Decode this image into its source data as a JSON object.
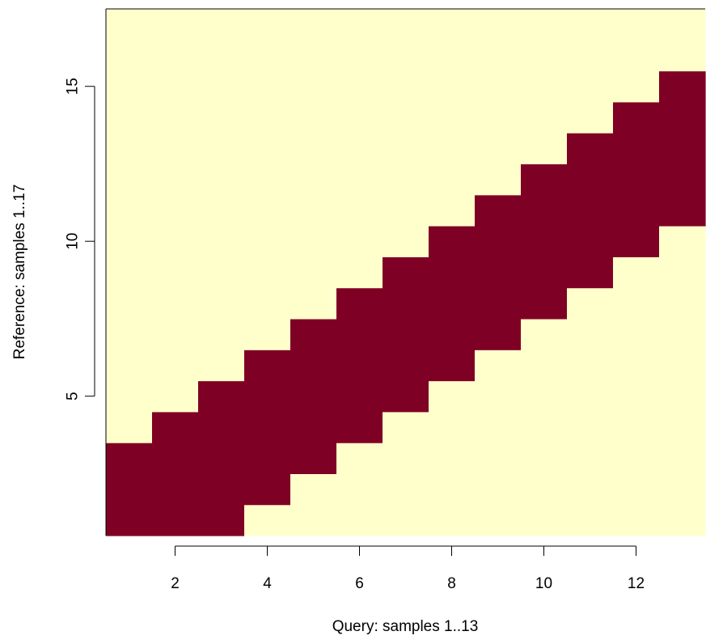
{
  "chart_data": {
    "type": "heatmap",
    "xlabel": "Query: samples 1..13",
    "ylabel": "Reference: samples 1..17",
    "x_range": [
      1,
      13
    ],
    "y_range": [
      1,
      17
    ],
    "xlim": [
      0.5,
      13.5
    ],
    "ylim": [
      0.5,
      17.5
    ],
    "x_ticks": [
      2,
      4,
      6,
      8,
      10,
      12
    ],
    "y_ticks": [
      5,
      10,
      15
    ],
    "grid": false,
    "legend": "none",
    "colors": {
      "inside_band": "#7f0025",
      "outside_band": "#ffffcc"
    },
    "band": {
      "description_columns": [
        "query",
        "reference_from",
        "reference_to"
      ],
      "columns": [
        {
          "query": 1,
          "reference_from": 1,
          "reference_to": 3
        },
        {
          "query": 2,
          "reference_from": 1,
          "reference_to": 4
        },
        {
          "query": 3,
          "reference_from": 1,
          "reference_to": 5
        },
        {
          "query": 4,
          "reference_from": 2,
          "reference_to": 6
        },
        {
          "query": 5,
          "reference_from": 3,
          "reference_to": 7
        },
        {
          "query": 6,
          "reference_from": 4,
          "reference_to": 8
        },
        {
          "query": 7,
          "reference_from": 5,
          "reference_to": 9
        },
        {
          "query": 8,
          "reference_from": 6,
          "reference_to": 10
        },
        {
          "query": 9,
          "reference_from": 7,
          "reference_to": 11
        },
        {
          "query": 10,
          "reference_from": 8,
          "reference_to": 12
        },
        {
          "query": 11,
          "reference_from": 9,
          "reference_to": 13
        },
        {
          "query": 12,
          "reference_from": 10,
          "reference_to": 14
        },
        {
          "query": 13,
          "reference_from": 11,
          "reference_to": 15
        }
      ]
    }
  }
}
